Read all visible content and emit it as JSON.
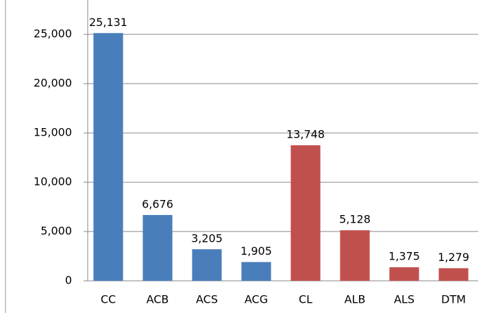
{
  "chart_data": {
    "type": "bar",
    "categories": [
      "CC",
      "ACB",
      "ACS",
      "ACG",
      "CL",
      "ALB",
      "ALS",
      "DTM"
    ],
    "values": [
      25131,
      6676,
      3205,
      1905,
      13748,
      5128,
      1375,
      1279
    ],
    "value_labels": [
      "25,131",
      "6,676",
      "3,205",
      "1,905",
      "13,748",
      "5,128",
      "1,375",
      "1,279"
    ],
    "colors": [
      "#4a7ebb",
      "#4a7ebb",
      "#4a7ebb",
      "#4a7ebb",
      "#c0504d",
      "#c0504d",
      "#c0504d",
      "#c0504d"
    ],
    "ylim": [
      0,
      28000
    ],
    "yticks": [
      0,
      {
        "value": 5000,
        "label": "5,000"
      },
      {
        "value": 10000,
        "label": "10,000"
      },
      {
        "value": 15000,
        "label": "15,000"
      },
      {
        "value": 20000,
        "label": "20,000"
      },
      {
        "value": 25000,
        "label": "25,000"
      }
    ],
    "grid": true
  }
}
